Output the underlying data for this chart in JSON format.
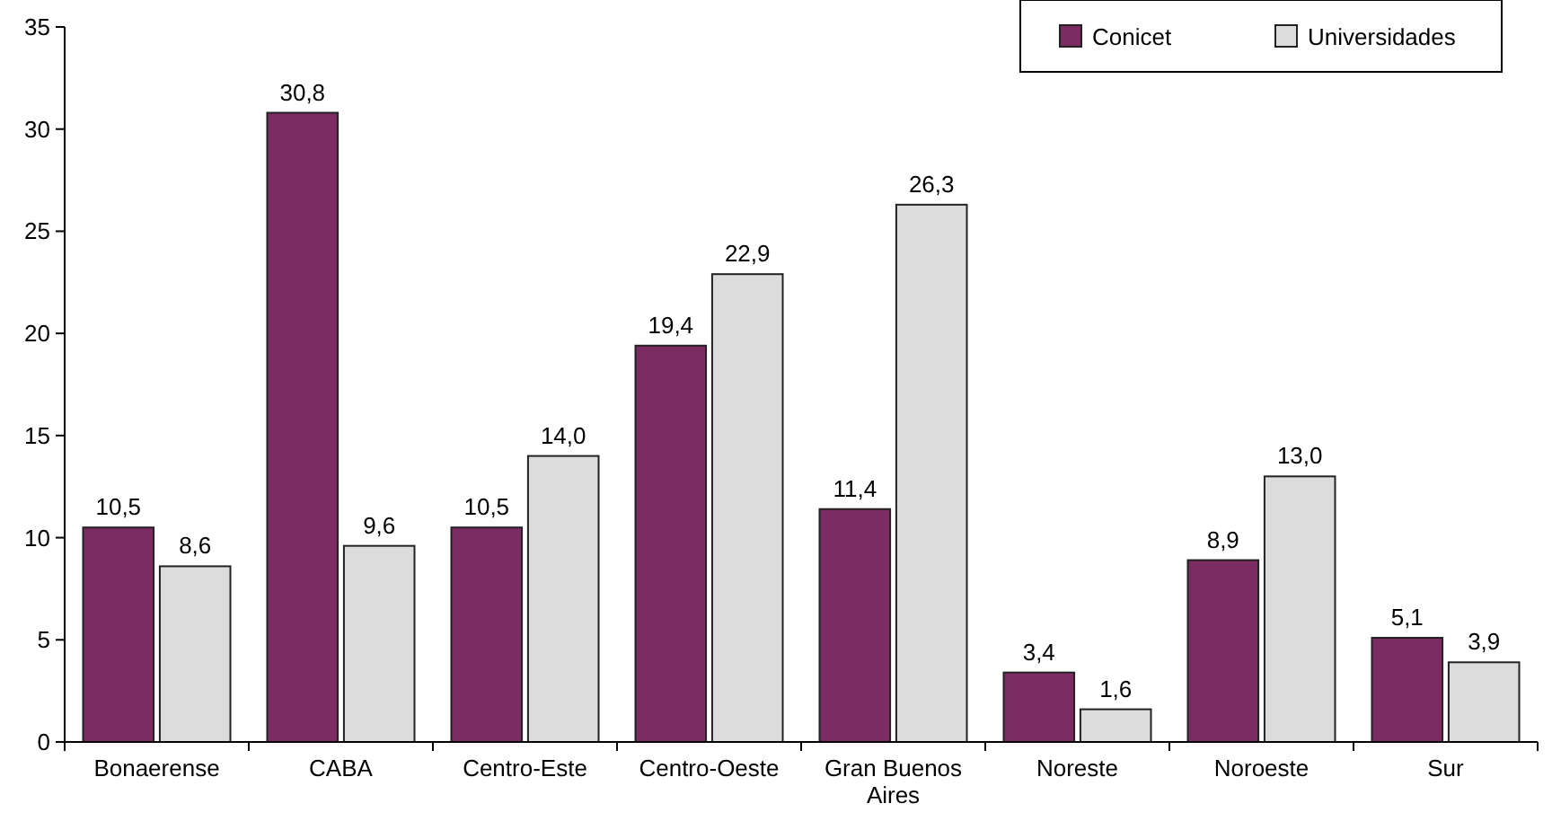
{
  "chart_data": {
    "type": "bar",
    "categories": [
      "Bonaerense",
      "CABA",
      "Centro-Este",
      "Centro-Oeste",
      "Gran Buenos Aires",
      "Noreste",
      "Noroeste",
      "Sur"
    ],
    "series": [
      {
        "name": "Conicet",
        "color": "#7b2d63",
        "values": [
          10.5,
          30.8,
          10.5,
          19.4,
          11.4,
          3.4,
          8.9,
          5.1
        ],
        "value_labels": [
          "10,5",
          "30,8",
          "10,5",
          "19,4",
          "11,4",
          "3,4",
          "8,9",
          "5,1"
        ]
      },
      {
        "name": "Universidades",
        "color": "#dcdcdc",
        "values": [
          8.6,
          9.6,
          14.0,
          22.9,
          26.3,
          1.6,
          13.0,
          3.9
        ],
        "value_labels": [
          "8,6",
          "9,6",
          "14,0",
          "22,9",
          "26,3",
          "1,6",
          "13,0",
          "3,9"
        ]
      }
    ],
    "ylim": [
      0,
      35
    ],
    "yticks": [
      0,
      5,
      10,
      15,
      20,
      25,
      30,
      35
    ],
    "grid": false,
    "legend": "top right"
  }
}
